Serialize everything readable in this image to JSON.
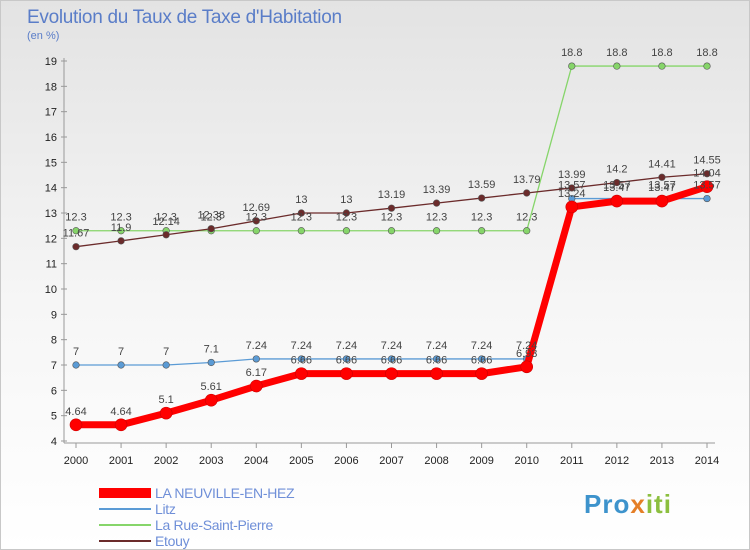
{
  "title": "Evolution du Taux de Taxe d'Habitation",
  "unit": "(en %)",
  "logo": {
    "text": [
      "Pro",
      "x",
      "iti"
    ],
    "colors": [
      "#3d93cc",
      "#e57f27",
      "#8cbf3f"
    ]
  },
  "chart_data": {
    "type": "line",
    "title": "Evolution du Taux de Taxe d'Habitation",
    "ylabel": "(en %)",
    "xlabel": "",
    "x": [
      "2000",
      "2001",
      "2002",
      "2003",
      "2004",
      "2005",
      "2006",
      "2007",
      "2008",
      "2009",
      "2010",
      "2011",
      "2012",
      "2013",
      "2014"
    ],
    "yticks": [
      4,
      5,
      6,
      7,
      8,
      9,
      10,
      11,
      12,
      13,
      14,
      15,
      16,
      17,
      18,
      19
    ],
    "ylim": [
      4,
      19
    ],
    "grid": false,
    "legend": "bottom-left",
    "series": [
      {
        "name": "LA NEUVILLE-EN-HEZ",
        "color": "#ff0000",
        "values": [
          4.64,
          4.64,
          5.1,
          5.61,
          6.17,
          6.66,
          6.66,
          6.66,
          6.66,
          6.66,
          6.93,
          13.24,
          13.47,
          13.47,
          14.04
        ],
        "labels": [
          "4.64",
          "4.64",
          "5.1",
          "5.61",
          "6.17",
          "6.66",
          "6.66",
          "6.66",
          "6.66",
          "6.66",
          "6.93",
          "13.24",
          "13.47",
          "13.47",
          "14.04"
        ]
      },
      {
        "name": "Litz",
        "color": "#5b9bd5",
        "values": [
          7,
          7,
          7,
          7.1,
          7.24,
          7.24,
          7.24,
          7.24,
          7.24,
          7.24,
          7.24,
          13.57,
          13.57,
          13.57,
          13.57
        ],
        "labels": [
          "7",
          "7",
          "7",
          "7.1",
          "7.24",
          "7.24",
          "7.24",
          "7.24",
          "7.24",
          "7.24",
          "7.24",
          "13.57",
          "13.57",
          "13.57",
          "13.57"
        ]
      },
      {
        "name": "La Rue-Saint-Pierre",
        "color": "#86d56a",
        "values": [
          12.3,
          12.3,
          12.3,
          12.3,
          12.3,
          12.3,
          12.3,
          12.3,
          12.3,
          12.3,
          12.3,
          18.8,
          18.8,
          18.8,
          18.8
        ],
        "labels": [
          "12.3",
          "12.3",
          "12.3",
          "12.3",
          "12.3",
          "12.3",
          "12.3",
          "12.3",
          "12.3",
          "12.3",
          "12.3",
          "18.8",
          "18.8",
          "18.8",
          "18.8"
        ]
      },
      {
        "name": "Etouy",
        "color": "#6b2b2b",
        "values": [
          11.67,
          11.9,
          12.14,
          12.38,
          12.69,
          13,
          13,
          13.19,
          13.39,
          13.59,
          13.79,
          13.99,
          14.2,
          14.41,
          14.55
        ],
        "labels": [
          "11.67",
          "11.9",
          "12.14",
          "12.38",
          "12.69",
          "13",
          "13",
          "13.19",
          "13.39",
          "13.59",
          "13.79",
          "13.99",
          "14.2",
          "14.41",
          "14.55"
        ]
      }
    ]
  }
}
